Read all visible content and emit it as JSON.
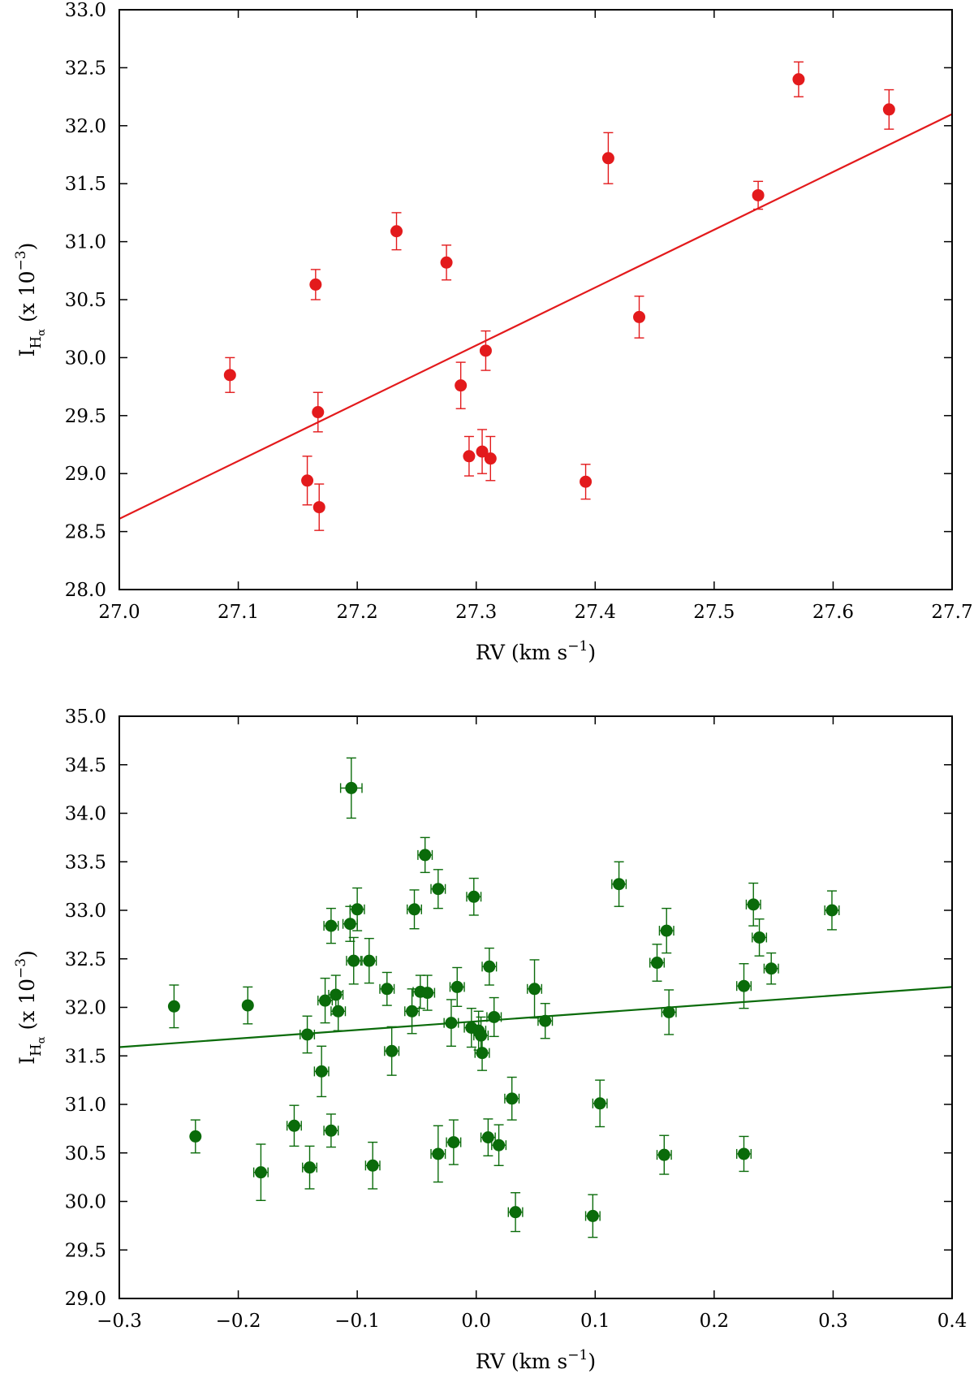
{
  "chart_data": [
    {
      "type": "scatter",
      "name": "top-panel",
      "color": "#e31a1c",
      "xlabel": "RV (km s",
      "xlabel_sup": "−1",
      "xlabel_close": ")",
      "ylabel_main": "I",
      "ylabel_sub": "H",
      "ylabel_subsub": "α",
      "ylabel_rest": " (x 10",
      "ylabel_sup": "−3",
      "ylabel_close": ")",
      "xlim": [
        27.0,
        27.7
      ],
      "ylim": [
        28.0,
        33.0
      ],
      "xticks": [
        27.0,
        27.1,
        27.2,
        27.3,
        27.4,
        27.5,
        27.6,
        27.7
      ],
      "xtick_labels": [
        "27.0",
        "27.1",
        "27.2",
        "27.3",
        "27.4",
        "27.5",
        "27.6",
        "27.7"
      ],
      "yticks": [
        28.0,
        28.5,
        29.0,
        29.5,
        30.0,
        30.5,
        31.0,
        31.5,
        32.0,
        32.5,
        33.0
      ],
      "ytick_labels": [
        "28.0",
        "28.5",
        "29.0",
        "29.5",
        "30.0",
        "30.5",
        "31.0",
        "31.5",
        "32.0",
        "32.5",
        "33.0"
      ],
      "fit_line": {
        "x": [
          27.0,
          27.7
        ],
        "y": [
          28.61,
          32.1
        ]
      },
      "points": [
        {
          "x": 27.093,
          "y": 29.85,
          "yerr": 0.15,
          "xerr": 0
        },
        {
          "x": 27.158,
          "y": 28.94,
          "yerr": 0.21,
          "xerr": 0
        },
        {
          "x": 27.165,
          "y": 30.63,
          "yerr": 0.13,
          "xerr": 0
        },
        {
          "x": 27.167,
          "y": 29.53,
          "yerr": 0.17,
          "xerr": 0
        },
        {
          "x": 27.168,
          "y": 28.71,
          "yerr": 0.2,
          "xerr": 0
        },
        {
          "x": 27.233,
          "y": 31.09,
          "yerr": 0.16,
          "xerr": 0
        },
        {
          "x": 27.275,
          "y": 30.82,
          "yerr": 0.15,
          "xerr": 0
        },
        {
          "x": 27.287,
          "y": 29.76,
          "yerr": 0.2,
          "xerr": 0
        },
        {
          "x": 27.294,
          "y": 29.15,
          "yerr": 0.17,
          "xerr": 0
        },
        {
          "x": 27.305,
          "y": 29.19,
          "yerr": 0.19,
          "xerr": 0
        },
        {
          "x": 27.308,
          "y": 30.06,
          "yerr": 0.17,
          "xerr": 0
        },
        {
          "x": 27.312,
          "y": 29.13,
          "yerr": 0.19,
          "xerr": 0
        },
        {
          "x": 27.392,
          "y": 28.93,
          "yerr": 0.15,
          "xerr": 0
        },
        {
          "x": 27.411,
          "y": 31.72,
          "yerr": 0.22,
          "xerr": 0
        },
        {
          "x": 27.437,
          "y": 30.35,
          "yerr": 0.18,
          "xerr": 0
        },
        {
          "x": 27.537,
          "y": 31.4,
          "yerr": 0.12,
          "xerr": 0
        },
        {
          "x": 27.571,
          "y": 32.4,
          "yerr": 0.15,
          "xerr": 0
        },
        {
          "x": 27.647,
          "y": 32.14,
          "yerr": 0.17,
          "xerr": 0
        }
      ]
    },
    {
      "type": "scatter",
      "name": "bottom-panel",
      "color": "#0a6b0a",
      "xlabel": "RV (km s",
      "xlabel_sup": "−1",
      "xlabel_close": ")",
      "ylabel_main": "I",
      "ylabel_sub": "H",
      "ylabel_subsub": "α",
      "ylabel_rest": " (x 10",
      "ylabel_sup": "−3",
      "ylabel_close": ")",
      "xlim": [
        -0.3,
        0.4
      ],
      "ylim": [
        29.0,
        35.0
      ],
      "xticks": [
        -0.3,
        -0.2,
        -0.1,
        0.0,
        0.1,
        0.2,
        0.3,
        0.4
      ],
      "xtick_labels": [
        "−0.3",
        "−0.2",
        "−0.1",
        "0.0",
        "0.1",
        "0.2",
        "0.3",
        "0.4"
      ],
      "yticks": [
        29.0,
        29.5,
        30.0,
        30.5,
        31.0,
        31.5,
        32.0,
        32.5,
        33.0,
        33.5,
        34.0,
        34.5,
        35.0
      ],
      "ytick_labels": [
        "29.0",
        "29.5",
        "30.0",
        "30.5",
        "31.0",
        "31.5",
        "32.0",
        "32.5",
        "33.0",
        "33.5",
        "34.0",
        "34.5",
        "35.0"
      ],
      "fit_line": {
        "x": [
          -0.3,
          0.4
        ],
        "y": [
          31.59,
          32.21
        ]
      },
      "points": [
        {
          "x": -0.254,
          "y": 32.01,
          "yerr": 0.22,
          "xerr": 0
        },
        {
          "x": -0.236,
          "y": 30.67,
          "yerr": 0.17,
          "xerr": 0
        },
        {
          "x": -0.192,
          "y": 32.02,
          "yerr": 0.19,
          "xerr": 0
        },
        {
          "x": -0.181,
          "y": 30.3,
          "yerr": 0.29,
          "xerr": 0.006
        },
        {
          "x": -0.153,
          "y": 30.78,
          "yerr": 0.21,
          "xerr": 0.006
        },
        {
          "x": -0.142,
          "y": 31.72,
          "yerr": 0.19,
          "xerr": 0.006
        },
        {
          "x": -0.14,
          "y": 30.35,
          "yerr": 0.22,
          "xerr": 0.006
        },
        {
          "x": -0.13,
          "y": 31.34,
          "yerr": 0.26,
          "xerr": 0.006
        },
        {
          "x": -0.127,
          "y": 32.07,
          "yerr": 0.23,
          "xerr": 0.006
        },
        {
          "x": -0.122,
          "y": 32.84,
          "yerr": 0.18,
          "xerr": 0.006
        },
        {
          "x": -0.122,
          "y": 30.73,
          "yerr": 0.17,
          "xerr": 0.006
        },
        {
          "x": -0.118,
          "y": 32.13,
          "yerr": 0.2,
          "xerr": 0.006
        },
        {
          "x": -0.116,
          "y": 31.96,
          "yerr": 0.2,
          "xerr": 0.006
        },
        {
          "x": -0.106,
          "y": 32.86,
          "yerr": 0.18,
          "xerr": 0.006
        },
        {
          "x": -0.105,
          "y": 34.26,
          "yerr": 0.31,
          "xerr": 0.009
        },
        {
          "x": -0.103,
          "y": 32.48,
          "yerr": 0.24,
          "xerr": 0.006
        },
        {
          "x": -0.1,
          "y": 33.01,
          "yerr": 0.22,
          "xerr": 0.006
        },
        {
          "x": -0.09,
          "y": 32.48,
          "yerr": 0.23,
          "xerr": 0.006
        },
        {
          "x": -0.087,
          "y": 30.37,
          "yerr": 0.24,
          "xerr": 0.006
        },
        {
          "x": -0.075,
          "y": 32.19,
          "yerr": 0.17,
          "xerr": 0.006
        },
        {
          "x": -0.071,
          "y": 31.55,
          "yerr": 0.25,
          "xerr": 0.006
        },
        {
          "x": -0.054,
          "y": 31.96,
          "yerr": 0.23,
          "xerr": 0.006
        },
        {
          "x": -0.052,
          "y": 33.01,
          "yerr": 0.2,
          "xerr": 0.006
        },
        {
          "x": -0.047,
          "y": 32.16,
          "yerr": 0.17,
          "xerr": 0.006
        },
        {
          "x": -0.043,
          "y": 33.57,
          "yerr": 0.18,
          "xerr": 0.006
        },
        {
          "x": -0.041,
          "y": 32.15,
          "yerr": 0.18,
          "xerr": 0.006
        },
        {
          "x": -0.032,
          "y": 33.22,
          "yerr": 0.2,
          "xerr": 0.006
        },
        {
          "x": -0.032,
          "y": 30.49,
          "yerr": 0.29,
          "xerr": 0.006
        },
        {
          "x": -0.021,
          "y": 31.84,
          "yerr": 0.24,
          "xerr": 0.006
        },
        {
          "x": -0.019,
          "y": 30.61,
          "yerr": 0.23,
          "xerr": 0.006
        },
        {
          "x": -0.016,
          "y": 32.21,
          "yerr": 0.2,
          "xerr": 0.006
        },
        {
          "x": -0.004,
          "y": 31.79,
          "yerr": 0.2,
          "xerr": 0.006
        },
        {
          "x": -0.002,
          "y": 33.14,
          "yerr": 0.19,
          "xerr": 0.006
        },
        {
          "x": 0.002,
          "y": 31.76,
          "yerr": 0.2,
          "xerr": 0.006
        },
        {
          "x": 0.004,
          "y": 31.71,
          "yerr": 0.19,
          "xerr": 0.006
        },
        {
          "x": 0.005,
          "y": 31.53,
          "yerr": 0.18,
          "xerr": 0.006
        },
        {
          "x": 0.01,
          "y": 30.66,
          "yerr": 0.19,
          "xerr": 0.006
        },
        {
          "x": 0.011,
          "y": 32.42,
          "yerr": 0.19,
          "xerr": 0.006
        },
        {
          "x": 0.015,
          "y": 31.9,
          "yerr": 0.2,
          "xerr": 0.006
        },
        {
          "x": 0.019,
          "y": 30.58,
          "yerr": 0.21,
          "xerr": 0.006
        },
        {
          "x": 0.03,
          "y": 31.06,
          "yerr": 0.22,
          "xerr": 0.006
        },
        {
          "x": 0.033,
          "y": 29.89,
          "yerr": 0.2,
          "xerr": 0.006
        },
        {
          "x": 0.049,
          "y": 32.19,
          "yerr": 0.3,
          "xerr": 0.006
        },
        {
          "x": 0.058,
          "y": 31.86,
          "yerr": 0.18,
          "xerr": 0.006
        },
        {
          "x": 0.098,
          "y": 29.85,
          "yerr": 0.22,
          "xerr": 0.006
        },
        {
          "x": 0.104,
          "y": 31.01,
          "yerr": 0.24,
          "xerr": 0.006
        },
        {
          "x": 0.12,
          "y": 33.27,
          "yerr": 0.23,
          "xerr": 0.006
        },
        {
          "x": 0.152,
          "y": 32.46,
          "yerr": 0.19,
          "xerr": 0.006
        },
        {
          "x": 0.158,
          "y": 30.48,
          "yerr": 0.2,
          "xerr": 0.006
        },
        {
          "x": 0.16,
          "y": 32.79,
          "yerr": 0.23,
          "xerr": 0.006
        },
        {
          "x": 0.162,
          "y": 31.95,
          "yerr": 0.23,
          "xerr": 0.006
        },
        {
          "x": 0.225,
          "y": 32.22,
          "yerr": 0.23,
          "xerr": 0.006
        },
        {
          "x": 0.225,
          "y": 30.49,
          "yerr": 0.18,
          "xerr": 0.006
        },
        {
          "x": 0.233,
          "y": 33.06,
          "yerr": 0.22,
          "xerr": 0.006
        },
        {
          "x": 0.238,
          "y": 32.72,
          "yerr": 0.19,
          "xerr": 0.006
        },
        {
          "x": 0.248,
          "y": 32.4,
          "yerr": 0.16,
          "xerr": 0.006
        },
        {
          "x": 0.299,
          "y": 33.0,
          "yerr": 0.2,
          "xerr": 0.006
        }
      ]
    }
  ]
}
